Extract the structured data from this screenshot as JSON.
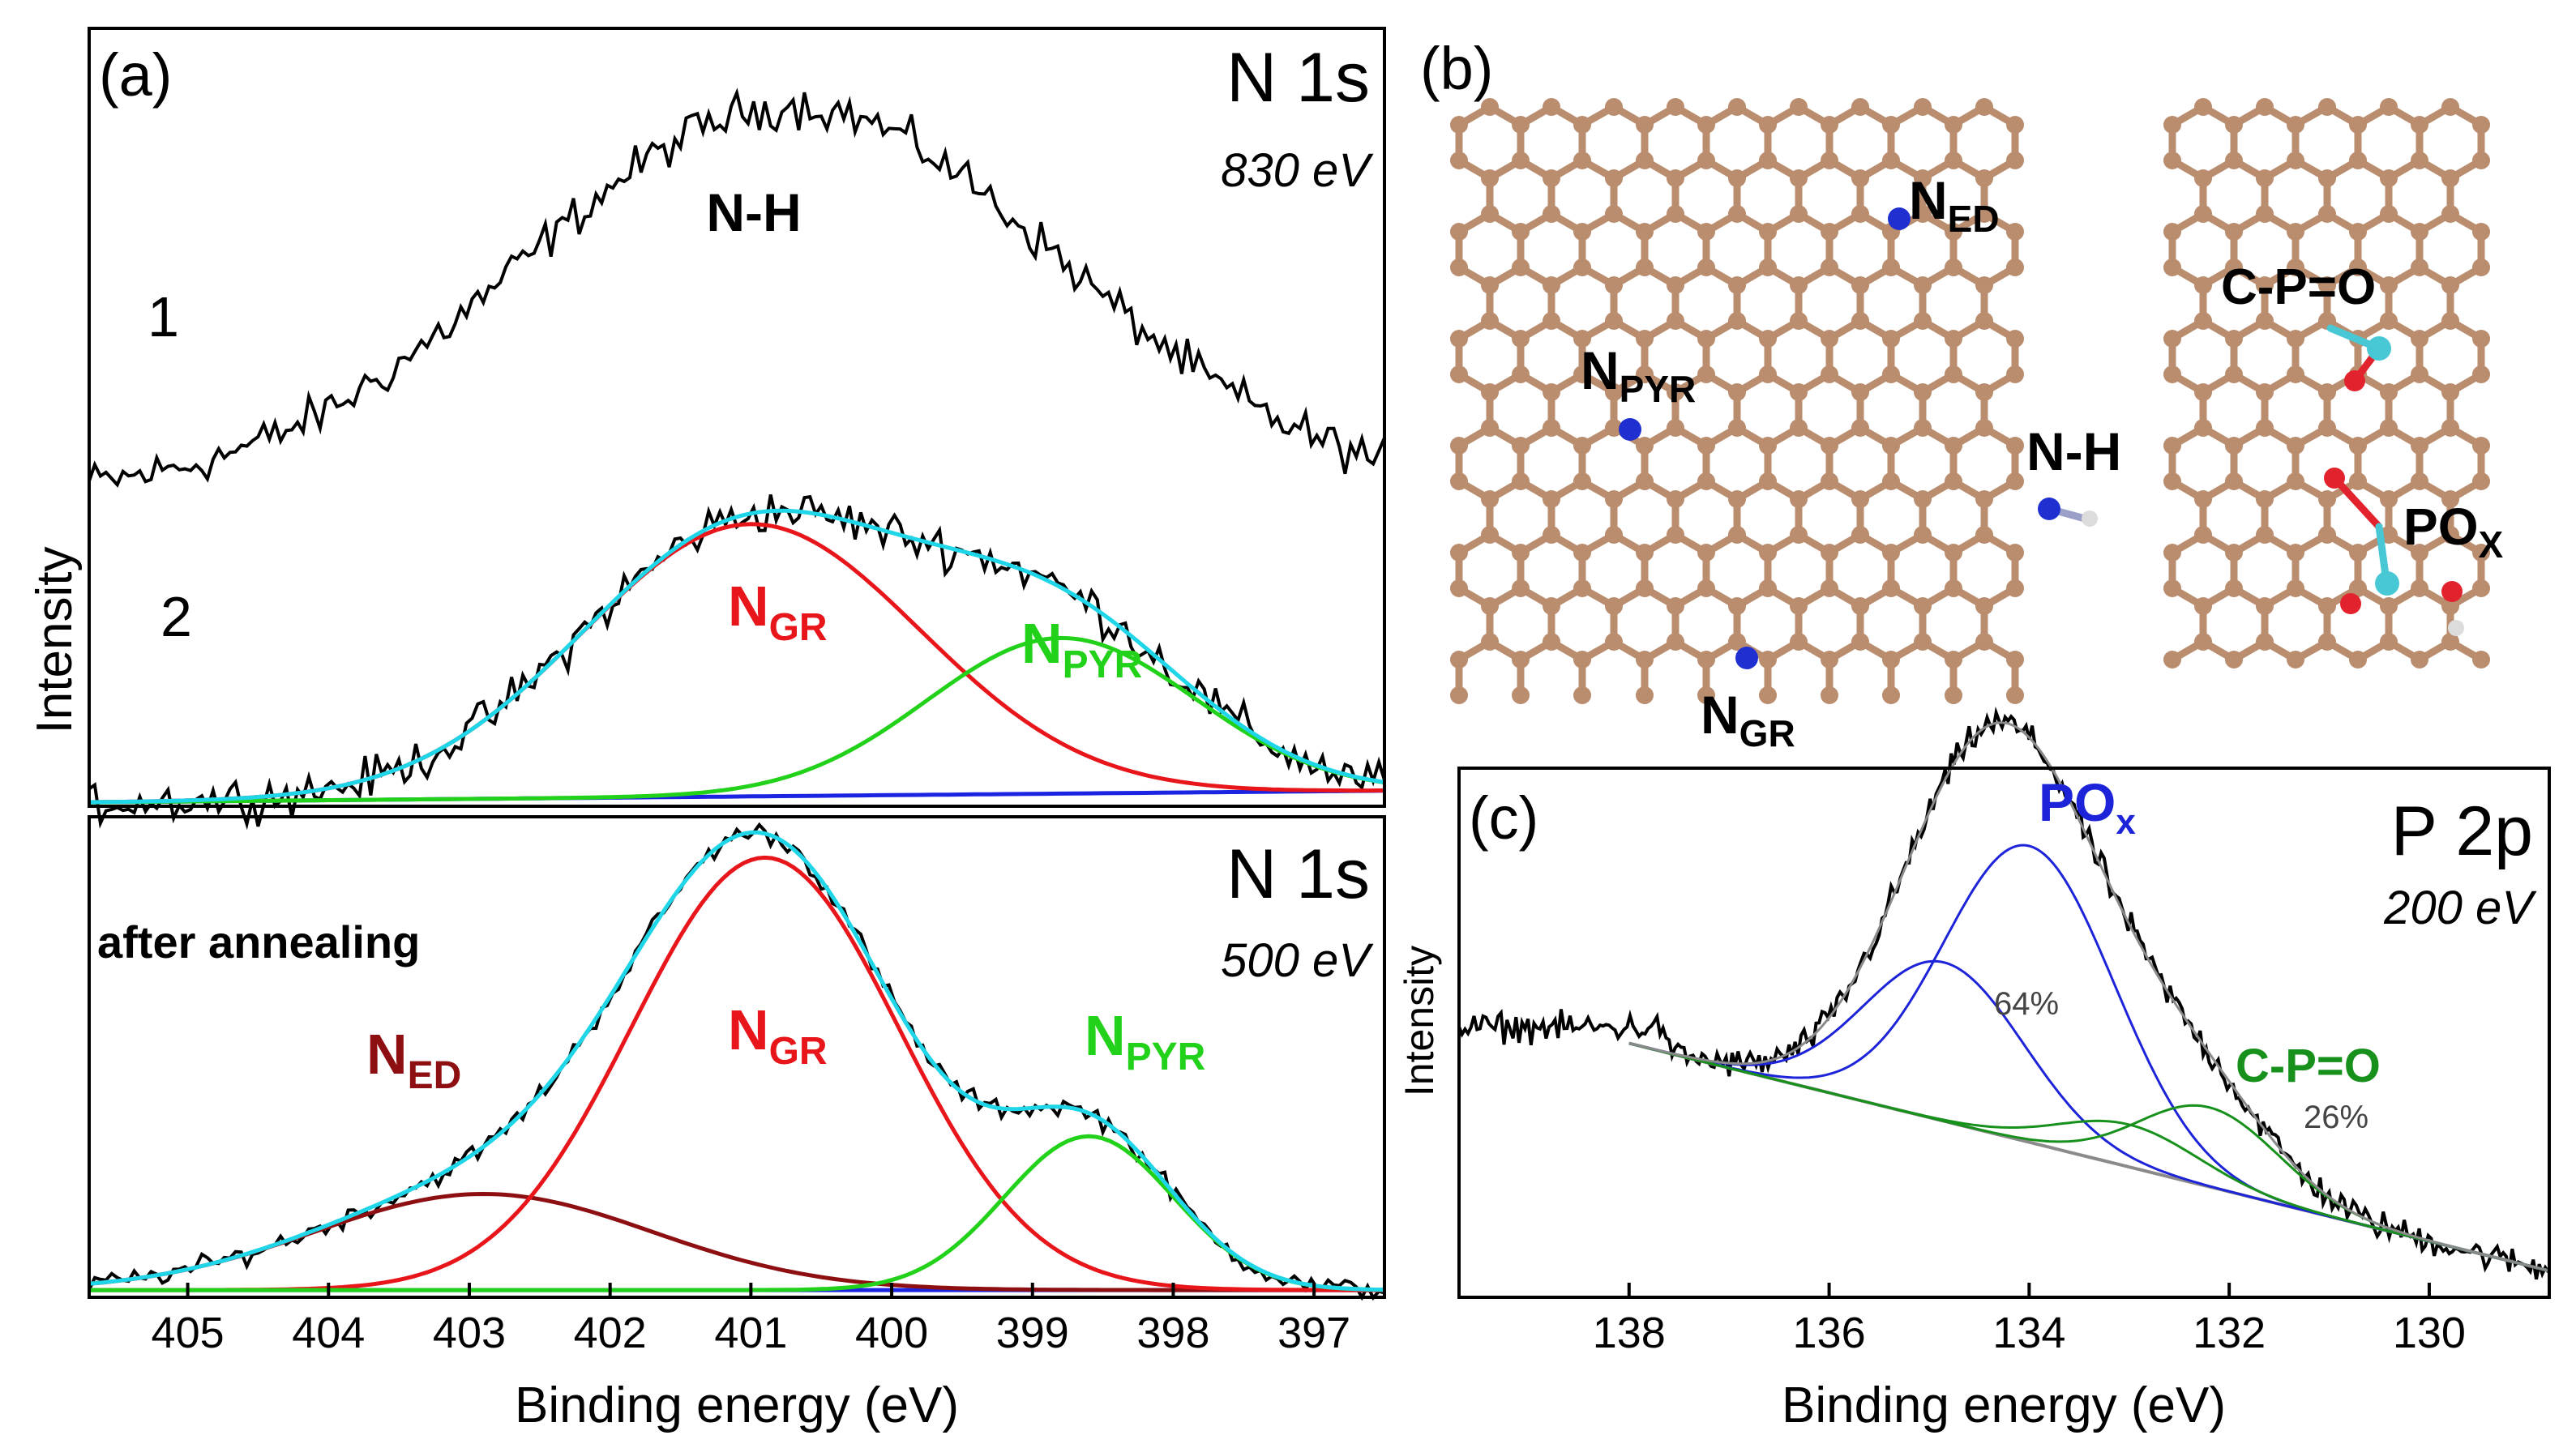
{
  "colors": {
    "raw": "#000000",
    "envelope": "#1fd6e8",
    "n_gr": "#e8151b",
    "n_pyr": "#22d21a",
    "n_ed": "#8e0f12",
    "baseline": "#1b24e0",
    "p_pox": "#1c23d8",
    "p_cpo": "#17901c",
    "p_env": "#8a8a8a",
    "atom_c": "#b98d6e",
    "atom_n": "#1f2fd0",
    "atom_p": "#48c8d4",
    "atom_o": "#e2232e",
    "atom_h": "#dcdcdc"
  },
  "chart_data": [
    {
      "id": "a-top",
      "type": "line",
      "panel_label": "(a)",
      "title": "N 1s",
      "energy_label": "830 eV",
      "ylabel": "Intensity",
      "xlim": [
        405.7,
        396.5
      ],
      "ylim": [
        0,
        100
      ],
      "curve_labels": [
        "1",
        "2"
      ],
      "series": [
        {
          "name": "1",
          "type": "raw",
          "peak_label": "N-H",
          "center": 400.7,
          "peak": 90,
          "base": 40,
          "noise": 4
        },
        {
          "name": "2",
          "type": "raw",
          "center": 401.0,
          "noise": 4
        },
        {
          "name": "envelope",
          "type": "fit"
        },
        {
          "name": "N_GR",
          "center": 401.0,
          "amplitude": 35,
          "sigma": 1.2,
          "label_main": "N",
          "label_sub": "GR"
        },
        {
          "name": "N_PYR",
          "center": 398.8,
          "amplitude": 20,
          "sigma": 0.95,
          "label_main": "N",
          "label_sub": "PYR"
        },
        {
          "name": "baseline",
          "from": [
            405.7,
            0.5
          ],
          "to": [
            396.5,
            2.0
          ]
        }
      ]
    },
    {
      "id": "a-bottom",
      "type": "line",
      "title": "N 1s",
      "energy_label": "500 eV",
      "annotation": "after annealing",
      "xlabel": "Binding energy (eV)",
      "xlim": [
        405.7,
        396.5
      ],
      "xticks": [
        405,
        404,
        403,
        402,
        401,
        400,
        399,
        398,
        397
      ],
      "ylim": [
        0,
        100
      ],
      "series": [
        {
          "name": "raw",
          "type": "raw",
          "noise": 3
        },
        {
          "name": "envelope",
          "type": "fit"
        },
        {
          "name": "N_ED",
          "center": 402.9,
          "amplitude": 20,
          "sigma": 1.2,
          "label_main": "N",
          "label_sub": "ED"
        },
        {
          "name": "N_GR",
          "center": 400.9,
          "amplitude": 90,
          "sigma": 0.95,
          "label_main": "N",
          "label_sub": "GR"
        },
        {
          "name": "N_PYR",
          "center": 398.6,
          "amplitude": 32,
          "sigma": 0.6,
          "label_main": "N",
          "label_sub": "PYR"
        },
        {
          "name": "baseline",
          "from": [
            405.7,
            1.5
          ],
          "to": [
            396.5,
            1.5
          ]
        }
      ]
    },
    {
      "id": "c",
      "type": "line",
      "panel_label": "(c)",
      "title": "P 2p",
      "energy_label": "200 eV",
      "xlabel": "Binding energy (eV)",
      "ylabel": "Intensity",
      "xlim": [
        139.7,
        128.8
      ],
      "xticks": [
        138,
        136,
        134,
        132,
        130
      ],
      "ylim": [
        0,
        100
      ],
      "series": [
        {
          "name": "raw",
          "type": "raw",
          "noise": 4
        },
        {
          "name": "envelope",
          "type": "fit"
        },
        {
          "name": "PO_x (a)",
          "center": 134.0,
          "amplitude": 56,
          "sigma": 0.85
        },
        {
          "name": "PO_x (b)",
          "center": 134.85,
          "amplitude": 30,
          "sigma": 0.8
        },
        {
          "name": "C-P=O (a)",
          "center": 132.2,
          "amplitude": 15,
          "sigma": 0.7
        },
        {
          "name": "C-P=O (b)",
          "center": 133.0,
          "amplitude": 8,
          "sigma": 0.7
        },
        {
          "name": "baseline",
          "from": [
            138.0,
            48
          ],
          "to": [
            128.8,
            5
          ]
        }
      ],
      "labels": {
        "pox_main": "PO",
        "pox_sub": "x",
        "pox_pct": "64%",
        "cpo": "C-P=O",
        "cpo_pct": "26%"
      }
    }
  ],
  "panel_b": {
    "label": "(b)",
    "labels": {
      "ned_main": "N",
      "ned_sub": "ED",
      "npyr_main": "N",
      "npyr_sub": "PYR",
      "nh": "N-H",
      "ngr_main": "N",
      "ngr_sub": "GR",
      "cpo": "C-P=O",
      "pox_main": "PO",
      "pox_sub": "X"
    }
  }
}
